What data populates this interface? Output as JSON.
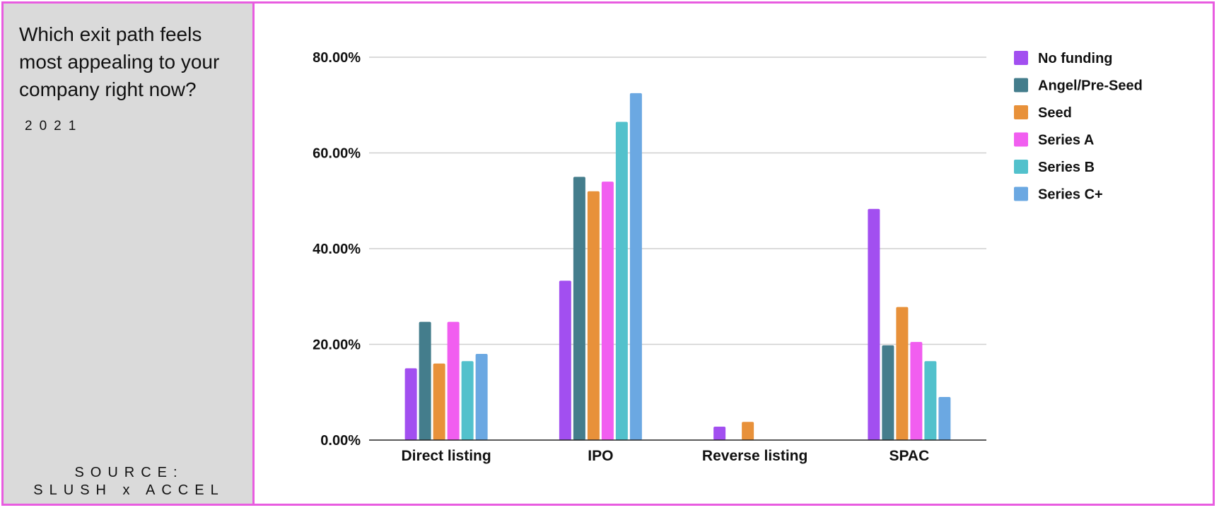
{
  "left_panel": {
    "question": "Which exit path feels most appealing to your company right now?",
    "year": "2021",
    "source_line1": "SOURCE:",
    "source_line2": "SLUSH x ACCEL"
  },
  "colors": {
    "frame": "#e85ce0",
    "panel_bg": "#dadada"
  },
  "chart_data": {
    "type": "bar",
    "categories": [
      "Direct listing",
      "IPO",
      "Reverse listing",
      "SPAC"
    ],
    "y_ticks": [
      "0.00%",
      "20.00%",
      "40.00%",
      "60.00%",
      "80.00%"
    ],
    "ylim": [
      0,
      80
    ],
    "grid": true,
    "legend_position": "right",
    "series": [
      {
        "name": "No funding",
        "color": "#a24ff0",
        "values": [
          15,
          33.3,
          2.8,
          48.3
        ]
      },
      {
        "name": "Angel/Pre-Seed",
        "color": "#447d8c",
        "values": [
          24.7,
          55,
          0,
          19.8
        ]
      },
      {
        "name": "Seed",
        "color": "#e8913a",
        "values": [
          16,
          52,
          3.8,
          27.8
        ]
      },
      {
        "name": "Series A",
        "color": "#f15ef0",
        "values": [
          24.7,
          54,
          0,
          20.5
        ]
      },
      {
        "name": "Series B",
        "color": "#52c1cc",
        "values": [
          16.5,
          66.5,
          0,
          16.5
        ]
      },
      {
        "name": "Series C+",
        "color": "#6ba8e2",
        "values": [
          18,
          72.5,
          0,
          9
        ]
      }
    ]
  }
}
